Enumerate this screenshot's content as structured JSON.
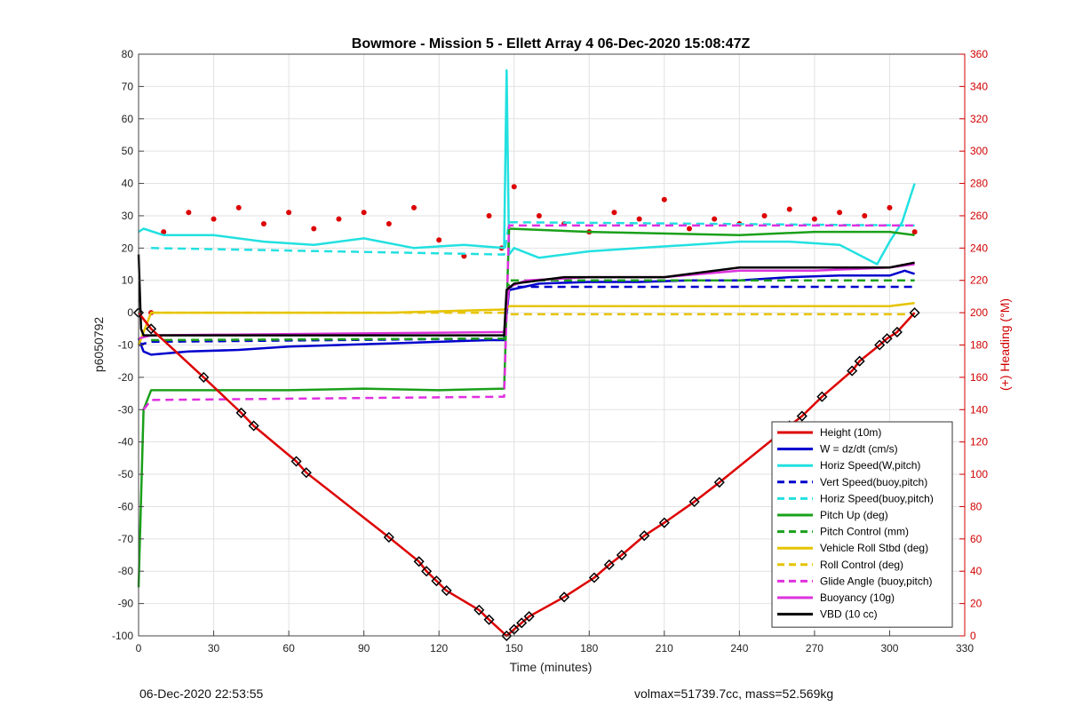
{
  "chart_data": {
    "type": "line",
    "title": "Bowmore - Mission 5 - Ellett Array 4 06-Dec-2020 15:08:47Z",
    "xlabel": "Time (minutes)",
    "ylabel": "p6050792",
    "ylabel_right": "(+) Heading (°M)",
    "xlim": [
      0,
      330
    ],
    "ylim": [
      -100,
      80
    ],
    "ylim_right": [
      0,
      360
    ],
    "x_ticks": [
      "0",
      "30",
      "60",
      "90",
      "120",
      "150",
      "180",
      "210",
      "240",
      "270",
      "300",
      "330"
    ],
    "y_ticks": [
      "80",
      "70",
      "60",
      "50",
      "40",
      "30",
      "20",
      "10",
      "0",
      "-10",
      "-20",
      "-30",
      "-40",
      "-50",
      "-60",
      "-70",
      "-80",
      "-90",
      "-100"
    ],
    "y_ticks_right": [
      "360",
      "340",
      "320",
      "300",
      "280",
      "260",
      "240",
      "220",
      "200",
      "180",
      "160",
      "140",
      "120",
      "100",
      "80",
      "60",
      "40",
      "20",
      "0"
    ],
    "grid": true,
    "legend_position": "bottom-right",
    "colors": {
      "height": "#dd0000",
      "w": "#0000cc",
      "horiz_cyan": "#22e0e0",
      "pitch": "#1aa01a",
      "roll": "#e6c400",
      "glide": "#e030e0",
      "buoyancy": "#dd33dd",
      "vbd": "#000000",
      "heading": "#dd0000"
    },
    "series": [
      {
        "name": "Height (10m)",
        "style": "solid",
        "color": "#dd0000",
        "x": [
          0,
          5,
          26,
          41,
          46,
          63,
          67,
          100,
          112,
          115,
          119,
          123,
          136,
          140,
          147,
          150,
          153,
          156,
          170,
          182,
          188,
          193,
          202,
          210,
          222,
          232,
          260,
          265,
          273,
          285,
          288,
          296,
          299,
          303,
          310
        ],
        "y": [
          0,
          -5,
          -20,
          -31,
          -35,
          -46,
          -49.5,
          -69.5,
          -77,
          -80,
          -83,
          -86,
          -92,
          -95,
          -100,
          -98,
          -96,
          -94,
          -88,
          -82,
          -78,
          -75,
          -69,
          -65,
          -58.5,
          -52.5,
          -35,
          -32,
          -26,
          -18,
          -15,
          -10,
          -8,
          -6,
          0
        ]
      },
      {
        "name": "W = dz/dt (cm/s)",
        "style": "solid",
        "color": "#0000cc",
        "x": [
          0,
          2,
          5,
          20,
          40,
          60,
          80,
          100,
          120,
          140,
          146,
          148,
          160,
          180,
          200,
          220,
          240,
          260,
          280,
          300,
          306,
          310
        ],
        "y": [
          -8,
          -12,
          -13,
          -12,
          -11.5,
          -10.5,
          -10,
          -9.5,
          -9,
          -8.5,
          -8.5,
          7,
          9,
          9.5,
          9.5,
          10,
          10,
          11,
          11.5,
          11.5,
          13,
          12
        ]
      },
      {
        "name": "Horiz Speed(W,pitch)",
        "style": "solid",
        "color": "#22e0e0",
        "x": [
          0,
          2,
          10,
          30,
          50,
          70,
          90,
          110,
          130,
          146,
          147,
          148,
          150,
          160,
          180,
          200,
          220,
          240,
          260,
          280,
          295,
          300,
          305,
          310
        ],
        "y": [
          25,
          26,
          24,
          24,
          22,
          21,
          23,
          20,
          21,
          20,
          75,
          18,
          20,
          17,
          19,
          20,
          21,
          22,
          22,
          21,
          15,
          22,
          28,
          40
        ]
      },
      {
        "name": "Vert Speed(buoy,pitch)",
        "style": "dash",
        "color": "#0000cc",
        "x": [
          0,
          5,
          146,
          148,
          310
        ],
        "y": [
          -10,
          -9,
          -8,
          8,
          8
        ]
      },
      {
        "name": "Horiz Speed(buoy,pitch)",
        "style": "dash",
        "color": "#22e0e0",
        "x": [
          5,
          146,
          148,
          310
        ],
        "y": [
          20,
          18,
          28,
          27
        ]
      },
      {
        "name": "Pitch Up (deg)",
        "style": "solid",
        "color": "#1aa01a",
        "x": [
          0,
          2,
          5,
          30,
          60,
          90,
          120,
          146,
          148,
          180,
          240,
          270,
          300,
          310
        ],
        "y": [
          -85,
          -30,
          -24,
          -24,
          -24,
          -23.5,
          -24,
          -23.5,
          26,
          25,
          24,
          25,
          25,
          24
        ]
      },
      {
        "name": "Pitch Control (mm)",
        "style": "dash",
        "color": "#1aa01a",
        "x": [
          5,
          146,
          148,
          310
        ],
        "y": [
          -8.5,
          -8,
          10,
          10
        ]
      },
      {
        "name": "Vehicle Roll Stbd (deg)",
        "style": "solid",
        "color": "#e6c400",
        "x": [
          0,
          5,
          60,
          100,
          146,
          148,
          200,
          260,
          300,
          310
        ],
        "y": [
          -10,
          0,
          0,
          0,
          1,
          2,
          2,
          2,
          2,
          3
        ]
      },
      {
        "name": "Roll Control (deg)",
        "style": "dash",
        "color": "#e6c400",
        "x": [
          5,
          146,
          148,
          310
        ],
        "y": [
          0,
          0,
          -0.5,
          -0.5
        ]
      },
      {
        "name": "Glide Angle (buoy,pitch)",
        "style": "dash",
        "color": "#e030e0",
        "x": [
          2,
          5,
          146,
          148,
          310
        ],
        "y": [
          -30,
          -27,
          -26,
          27,
          27
        ]
      },
      {
        "name": "Buoyancy (10g)",
        "style": "solid",
        "color": "#dd33dd",
        "x": [
          0,
          5,
          146,
          148,
          155,
          180,
          210,
          240,
          270,
          300,
          310
        ],
        "y": [
          -8,
          -7,
          -6,
          8,
          10,
          11,
          11,
          13,
          13,
          14,
          15
        ]
      },
      {
        "name": "VBD (10 cc)",
        "style": "solid",
        "color": "#000000",
        "x": [
          0,
          1,
          2,
          146,
          147,
          150,
          170,
          210,
          240,
          270,
          300,
          310
        ],
        "y": [
          18,
          -5,
          -7,
          -7,
          7,
          9,
          11,
          11,
          14,
          14,
          14,
          15.5
        ]
      }
    ],
    "heading_right_axis": {
      "x": [
        5,
        10,
        20,
        30,
        40,
        50,
        60,
        70,
        80,
        90,
        100,
        110,
        120,
        130,
        140,
        145,
        150,
        160,
        170,
        180,
        190,
        200,
        210,
        220,
        230,
        240,
        250,
        260,
        270,
        280,
        290,
        300,
        310
      ],
      "y": [
        200,
        250,
        262,
        258,
        265,
        255,
        262,
        252,
        258,
        262,
        255,
        265,
        245,
        235,
        260,
        240,
        278,
        260,
        255,
        250,
        262,
        258,
        270,
        252,
        258,
        255,
        260,
        264,
        258,
        262,
        260,
        265,
        250
      ],
      "color": "#dd0000"
    },
    "footer_left": "06-Dec-2020 22:53:55",
    "footer_right": "volmax=51739.7cc, mass=52.569kg"
  }
}
